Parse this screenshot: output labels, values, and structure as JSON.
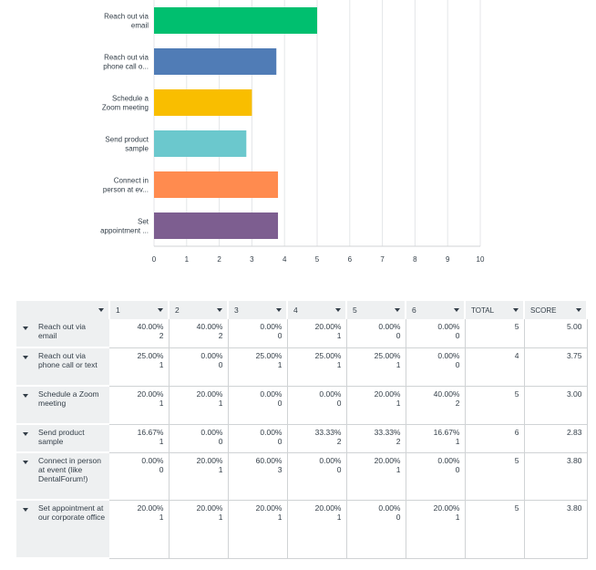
{
  "chart_data": {
    "type": "bar",
    "orientation": "horizontal",
    "categories": [
      "Reach out via email",
      "Reach out via phone call o...",
      "Schedule a Zoom meeting",
      "Send product sample",
      "Connect in person at ev...",
      "Set appointment ..."
    ],
    "category_lines": [
      [
        "Reach out via",
        "email"
      ],
      [
        "Reach out via",
        "phone call o..."
      ],
      [
        "Schedule a",
        "Zoom meeting"
      ],
      [
        "Send product",
        "sample"
      ],
      [
        "Connect in",
        "person at ev..."
      ],
      [
        "Set",
        "appointment ..."
      ]
    ],
    "values": [
      5.0,
      3.75,
      3.0,
      2.83,
      3.8,
      3.8
    ],
    "colors": [
      "#00bf6f",
      "#507cb6",
      "#f9be00",
      "#6bc8cd",
      "#ff8b4f",
      "#7d5e90"
    ],
    "xlim": [
      0,
      10
    ],
    "xticks": [
      "0",
      "1",
      "2",
      "3",
      "4",
      "5",
      "6",
      "7",
      "8",
      "9",
      "10"
    ],
    "grid": true,
    "title": "",
    "xlabel": "",
    "ylabel": ""
  },
  "table": {
    "headers": [
      "1",
      "2",
      "3",
      "4",
      "5",
      "6"
    ],
    "total_header": "TOTAL",
    "score_header": "SCORE",
    "rows": [
      {
        "label": "Reach out via email",
        "cells": [
          {
            "pct": "40.00%",
            "count": "2"
          },
          {
            "pct": "40.00%",
            "count": "2"
          },
          {
            "pct": "0.00%",
            "count": "0"
          },
          {
            "pct": "20.00%",
            "count": "1"
          },
          {
            "pct": "0.00%",
            "count": "0"
          },
          {
            "pct": "0.00%",
            "count": "0"
          }
        ],
        "total": "5",
        "score": "5.00"
      },
      {
        "label": "Reach out via phone call or text",
        "cells": [
          {
            "pct": "25.00%",
            "count": "1"
          },
          {
            "pct": "0.00%",
            "count": "0"
          },
          {
            "pct": "25.00%",
            "count": "1"
          },
          {
            "pct": "25.00%",
            "count": "1"
          },
          {
            "pct": "25.00%",
            "count": "1"
          },
          {
            "pct": "0.00%",
            "count": "0"
          }
        ],
        "total": "4",
        "score": "3.75"
      },
      {
        "label": "Schedule a Zoom meeting",
        "cells": [
          {
            "pct": "20.00%",
            "count": "1"
          },
          {
            "pct": "20.00%",
            "count": "1"
          },
          {
            "pct": "0.00%",
            "count": "0"
          },
          {
            "pct": "0.00%",
            "count": "0"
          },
          {
            "pct": "20.00%",
            "count": "1"
          },
          {
            "pct": "40.00%",
            "count": "2"
          }
        ],
        "total": "5",
        "score": "3.00"
      },
      {
        "label": "Send product sample",
        "cells": [
          {
            "pct": "16.67%",
            "count": "1"
          },
          {
            "pct": "0.00%",
            "count": "0"
          },
          {
            "pct": "0.00%",
            "count": "0"
          },
          {
            "pct": "33.33%",
            "count": "2"
          },
          {
            "pct": "33.33%",
            "count": "2"
          },
          {
            "pct": "16.67%",
            "count": "1"
          }
        ],
        "total": "6",
        "score": "2.83"
      },
      {
        "label": "Connect in person at event (like DentalForum!)",
        "cells": [
          {
            "pct": "0.00%",
            "count": "0"
          },
          {
            "pct": "20.00%",
            "count": "1"
          },
          {
            "pct": "60.00%",
            "count": "3"
          },
          {
            "pct": "0.00%",
            "count": "0"
          },
          {
            "pct": "20.00%",
            "count": "1"
          },
          {
            "pct": "0.00%",
            "count": "0"
          }
        ],
        "total": "5",
        "score": "3.80"
      },
      {
        "label": "Set appointment at our corporate office",
        "cells": [
          {
            "pct": "20.00%",
            "count": "1"
          },
          {
            "pct": "20.00%",
            "count": "1"
          },
          {
            "pct": "20.00%",
            "count": "1"
          },
          {
            "pct": "20.00%",
            "count": "1"
          },
          {
            "pct": "0.00%",
            "count": "0"
          },
          {
            "pct": "20.00%",
            "count": "1"
          }
        ],
        "total": "5",
        "score": "3.80"
      }
    ]
  }
}
